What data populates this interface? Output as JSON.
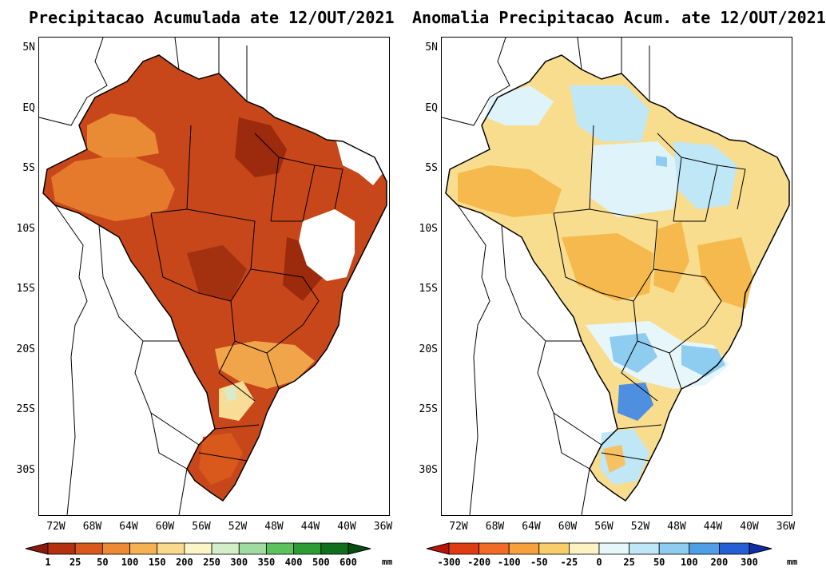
{
  "left_panel": {
    "title": "Precipitacao Acumulada ate 12/OUT/2021",
    "lat_labels": [
      "5N",
      "EQ",
      "5S",
      "10S",
      "15S",
      "20S",
      "25S",
      "30S"
    ],
    "lon_labels": [
      "72W",
      "68W",
      "64W",
      "60W",
      "56W",
      "52W",
      "48W",
      "44W",
      "40W",
      "36W"
    ],
    "colorbar": {
      "labels": [
        "1",
        "25",
        "50",
        "100",
        "150",
        "200",
        "250",
        "300",
        "350",
        "400",
        "500",
        "600"
      ],
      "colors": [
        "#8b1a0a",
        "#b5300e",
        "#d9581c",
        "#ee8a33",
        "#f5b152",
        "#f9d98e",
        "#fbf5c8",
        "#d3efc9",
        "#9fdca0",
        "#5cc25d",
        "#2c9d34",
        "#0f6f1c",
        "#064d10"
      ],
      "unit": "mm"
    }
  },
  "right_panel": {
    "title": "Anomalia Precipitacao Acum. ate 12/OUT/2021",
    "lat_labels": [
      "5N",
      "EQ",
      "5S",
      "10S",
      "15S",
      "20S",
      "25S",
      "30S"
    ],
    "lon_labels": [
      "72W",
      "68W",
      "64W",
      "60W",
      "56W",
      "52W",
      "48W",
      "44W",
      "40W",
      "36W"
    ],
    "colorbar": {
      "labels": [
        "-300",
        "-200",
        "-100",
        "-50",
        "-25",
        "0",
        "25",
        "50",
        "100",
        "200",
        "300"
      ],
      "colors": [
        "#b8140a",
        "#e03c12",
        "#f26b26",
        "#f7a03c",
        "#f9cd6a",
        "#fdf2c4",
        "#e6f6fb",
        "#bfe7f6",
        "#8ecdf0",
        "#4f9fe6",
        "#2460d4",
        "#0d2ea8"
      ],
      "unit": "mm"
    }
  }
}
